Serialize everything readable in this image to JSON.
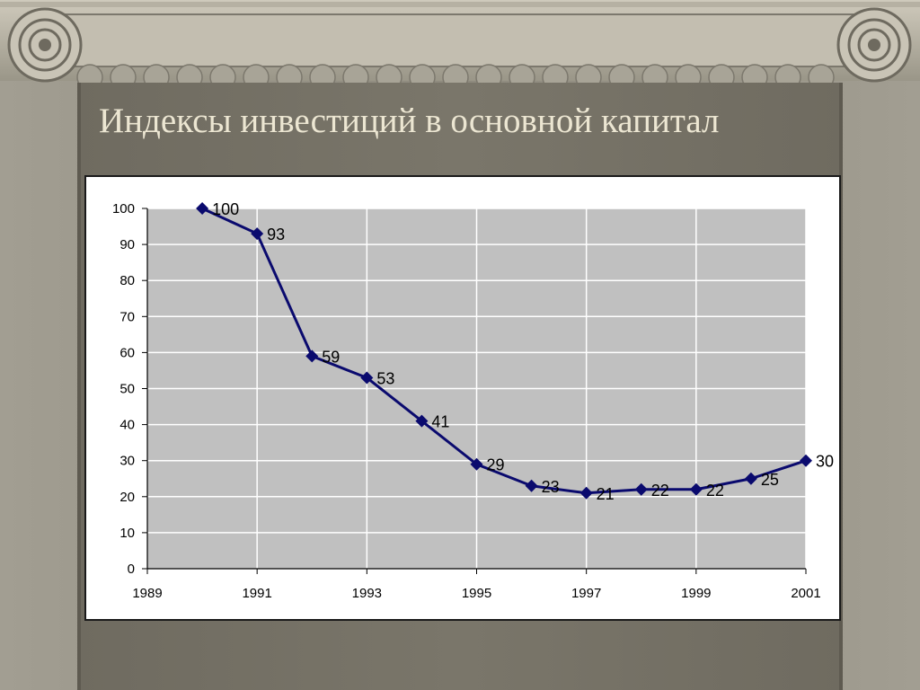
{
  "slide": {
    "title": "Индексы инвестиций в основной капитал"
  },
  "colors": {
    "plot_bg": "#c0c0c0",
    "line": "#0a0a6e",
    "frame": "#ffffff",
    "slide_bg": "#8b877b",
    "title": "#ece6d2"
  },
  "chart_data": {
    "type": "line",
    "title": "",
    "xlabel": "",
    "ylabel": "",
    "xlim": [
      1989,
      2001
    ],
    "ylim": [
      0,
      100
    ],
    "x_ticks": [
      1989,
      1991,
      1993,
      1995,
      1997,
      1999,
      2001
    ],
    "y_ticks": [
      0,
      10,
      20,
      30,
      40,
      50,
      60,
      70,
      80,
      90,
      100
    ],
    "grid": true,
    "legend": "none",
    "series": [
      {
        "x": [
          1990,
          1991,
          1992,
          1993,
          1994,
          1995,
          1996,
          1997,
          1998,
          1999,
          2000,
          2001
        ],
        "values": [
          100,
          93,
          59,
          53,
          41,
          29,
          23,
          21,
          22,
          22,
          25,
          30
        ],
        "labels": [
          "100",
          "93",
          "59",
          "53",
          "41",
          "29",
          "23",
          "21",
          "22",
          "22",
          "25",
          "30"
        ]
      }
    ]
  }
}
